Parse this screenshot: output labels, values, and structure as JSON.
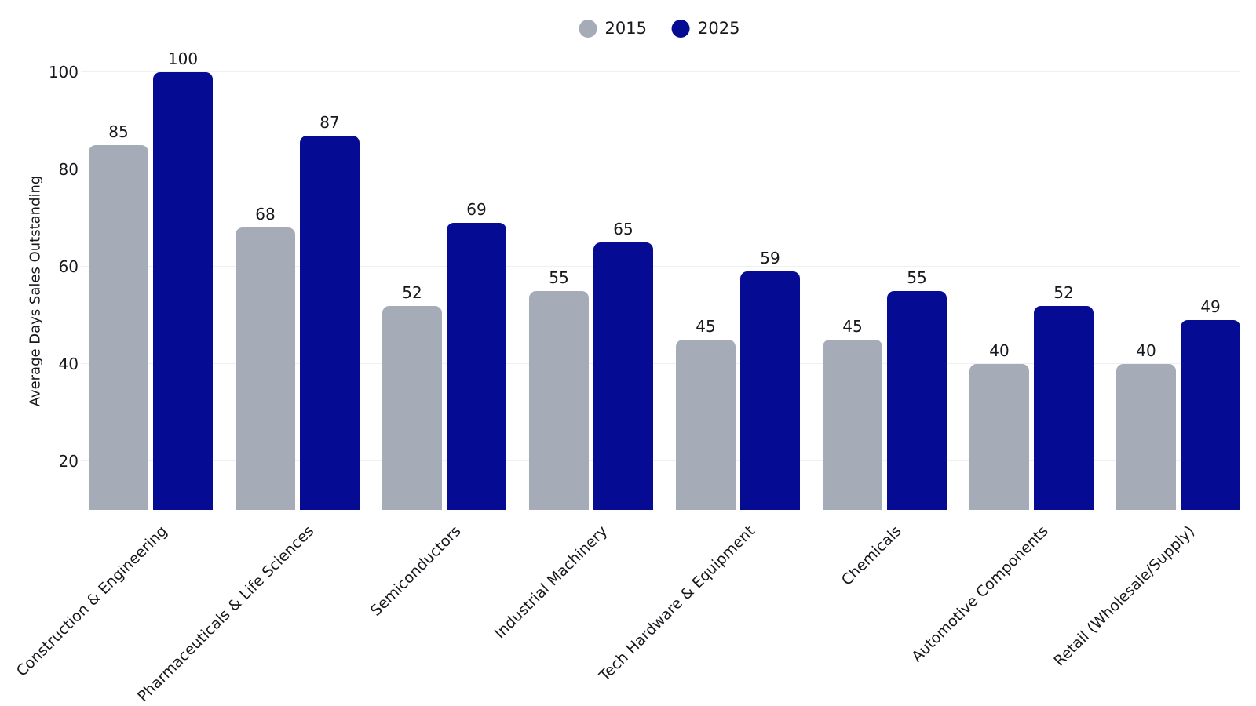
{
  "chart_data": {
    "type": "bar",
    "title": "",
    "xlabel": "",
    "ylabel": "Average Days Sales Outstanding",
    "categories": [
      "Construction & Engineering",
      "Pharmaceuticals & Life Sciences",
      "Semiconductors",
      "Industrial Machinery",
      "Tech Hardware & Equipment",
      "Chemicals",
      "Automotive Components",
      "Retail (Wholesale/Supply)"
    ],
    "series": [
      {
        "name": "2015",
        "color": "#a6abb8",
        "values": [
          85,
          68,
          52,
          55,
          45,
          45,
          40,
          40
        ]
      },
      {
        "name": "2025",
        "color": "#050c93",
        "values": [
          100,
          87,
          69,
          65,
          59,
          55,
          52,
          49
        ]
      }
    ],
    "yticks": [
      20,
      40,
      60,
      80,
      100
    ],
    "ylim": [
      10,
      100
    ],
    "grid": true,
    "gridline_color": "#eef0f2",
    "text_color": "#17181c",
    "legend_position": "top-center",
    "bar_label_format": "integer"
  }
}
